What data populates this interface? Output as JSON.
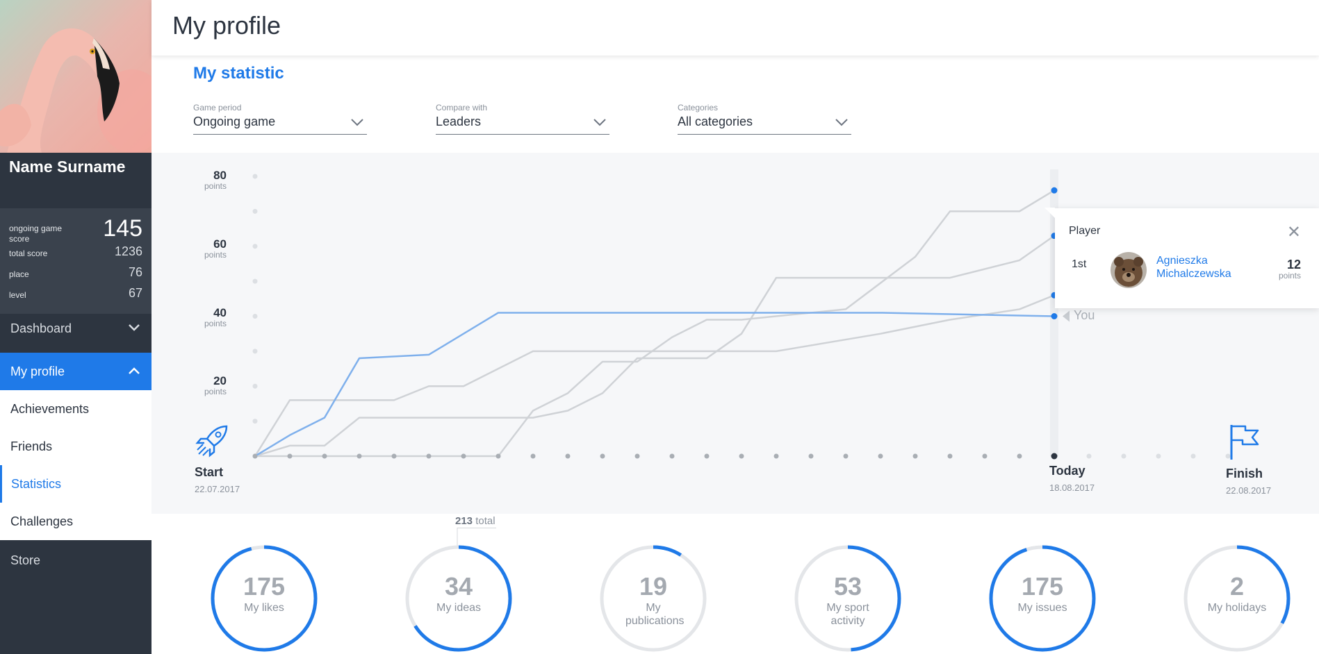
{
  "header": {
    "title": "My profile"
  },
  "user": {
    "name": "Name Surname",
    "ongoing_label": "ongoing game score",
    "ongoing_value": "145",
    "total_label": "total score",
    "total_value": "1236",
    "place_label": "place",
    "place_value": "76",
    "level_label": "level",
    "level_value": "67"
  },
  "nav": {
    "dashboard": "Dashboard",
    "my_profile": "My profile",
    "achievements": "Achievements",
    "friends": "Friends",
    "statistics": "Statistics",
    "challenges": "Challenges",
    "store": "Store"
  },
  "section_title": "My statistic",
  "filters": [
    {
      "label": "Game period",
      "value": "Ongoing game"
    },
    {
      "label": "Compare with",
      "value": "Leaders"
    },
    {
      "label": "Categories",
      "value": "All categories"
    }
  ],
  "chart_data": {
    "type": "line",
    "y_unit": "points",
    "y_ticks": [
      20,
      40,
      60,
      80
    ],
    "ylim": [
      0,
      80
    ],
    "x_steps_total": 28,
    "today_index": 23,
    "milestones": {
      "start": {
        "label": "Start",
        "date": "22.07.2017"
      },
      "today": {
        "label": "Today",
        "date": "18.08.2017"
      },
      "finish": {
        "label": "Finish",
        "date": "22.08.2017"
      }
    },
    "series": [
      {
        "color": "#7fb0ec",
        "you_label": "You",
        "points": [
          [
            0,
            0
          ],
          [
            1,
            6
          ],
          [
            2,
            11
          ],
          [
            3,
            28
          ],
          [
            5,
            29
          ],
          [
            7,
            41
          ],
          [
            14,
            41
          ],
          [
            18,
            41
          ],
          [
            23,
            40
          ]
        ]
      },
      {
        "color": "#cfd2d6",
        "points": [
          [
            0,
            0
          ],
          [
            1,
            16
          ],
          [
            3,
            16
          ],
          [
            4,
            16
          ],
          [
            5,
            20
          ],
          [
            6,
            20
          ],
          [
            8,
            30
          ],
          [
            10,
            30
          ],
          [
            12,
            30
          ],
          [
            15,
            30
          ],
          [
            18,
            35
          ],
          [
            20,
            39
          ],
          [
            22,
            42
          ],
          [
            23,
            46
          ]
        ]
      },
      {
        "color": "#cfd2d6",
        "points": [
          [
            0,
            0
          ],
          [
            1,
            3
          ],
          [
            2,
            3
          ],
          [
            3,
            11
          ],
          [
            6,
            11
          ],
          [
            8,
            11
          ],
          [
            9,
            13
          ],
          [
            10,
            18
          ],
          [
            11,
            28
          ],
          [
            13,
            28
          ],
          [
            14,
            35
          ],
          [
            15,
            51
          ],
          [
            17,
            51
          ],
          [
            20,
            51
          ],
          [
            22,
            56
          ],
          [
            23,
            63
          ]
        ]
      },
      {
        "color": "#cfd2d6",
        "points": [
          [
            0,
            0
          ],
          [
            7,
            0
          ],
          [
            8,
            13
          ],
          [
            9,
            18
          ],
          [
            10,
            27
          ],
          [
            11,
            27
          ],
          [
            12,
            34
          ],
          [
            13,
            39
          ],
          [
            14,
            39
          ],
          [
            17,
            42
          ],
          [
            19,
            57
          ],
          [
            20,
            70
          ],
          [
            22,
            70
          ],
          [
            23,
            76
          ]
        ]
      }
    ]
  },
  "tooltip": {
    "header": "Player",
    "rank": "1st",
    "name": "Agnieszka Michalczewska",
    "points": "12",
    "points_unit": "points"
  },
  "stats": {
    "total_value": "213",
    "total_word": "total",
    "items": [
      {
        "value": "175",
        "label": "My likes",
        "fraction": 0.96
      },
      {
        "value": "34",
        "label": "My ideas",
        "fraction": 0.66
      },
      {
        "value": "19",
        "label": "My publications",
        "fraction": 0.09
      },
      {
        "value": "53",
        "label": "My sport activity",
        "fraction": 0.49
      },
      {
        "value": "175",
        "label": "My issues",
        "fraction": 0.95
      },
      {
        "value": "2",
        "label": "My holidays",
        "fraction": 0.33
      }
    ]
  },
  "colors": {
    "accent": "#1f7ae8",
    "sidebar": "#2d3540",
    "series_other": "#cfd2d6",
    "ring_track": "#e4e6e9"
  }
}
